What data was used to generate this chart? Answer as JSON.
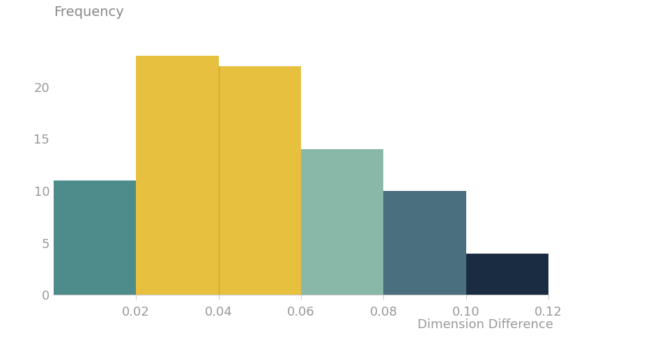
{
  "bins": [
    0.0,
    0.02,
    0.04,
    0.06,
    0.08,
    0.1,
    0.12
  ],
  "frequencies": [
    11,
    23,
    22,
    14,
    10,
    4
  ],
  "bar_colors": [
    "#4e8c8c",
    "#e8c040",
    "#e8c040",
    "#8ab8a8",
    "#4a7080",
    "#1a2d40"
  ],
  "bar_edge_color_inner": "#c8a820",
  "ylabel": "Frequency",
  "xlabel": "Dimension Difference",
  "ylim": [
    0,
    25
  ],
  "yticks": [
    0,
    5,
    10,
    15,
    20
  ],
  "xticks": [
    0.02,
    0.04,
    0.06,
    0.08,
    0.1,
    0.12
  ],
  "background_color": "#ffffff",
  "ylabel_fontsize": 14,
  "xlabel_fontsize": 13,
  "tick_fontsize": 13,
  "tick_color": "#aaaaaa",
  "label_color": "#999999",
  "spine_color": "#cccccc"
}
